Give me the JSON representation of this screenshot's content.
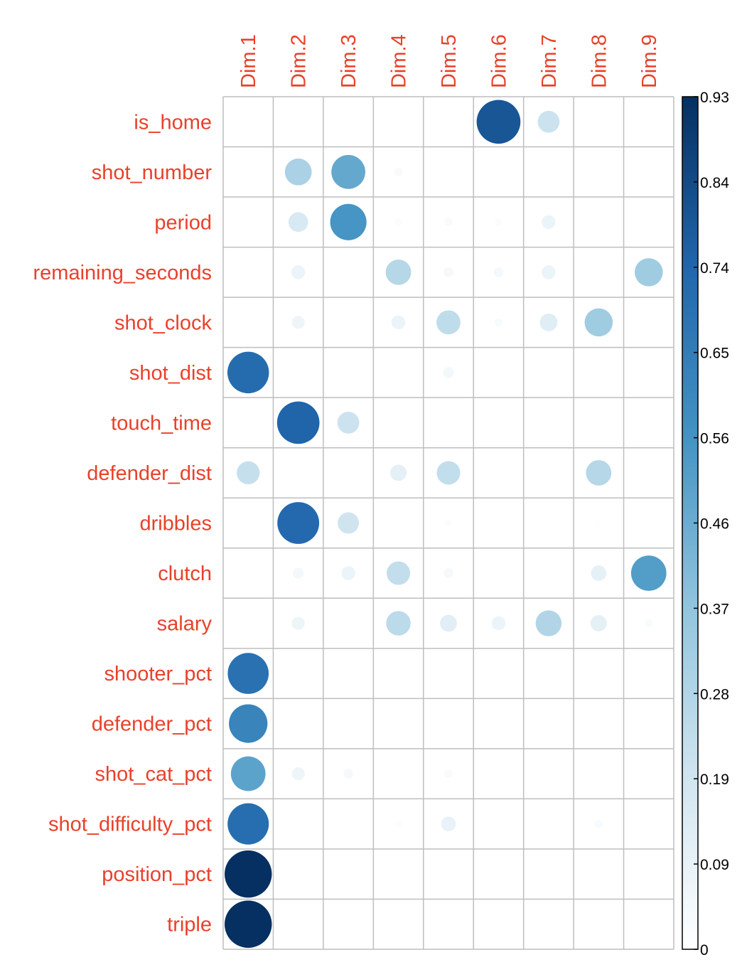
{
  "chart_data": {
    "type": "heatmap",
    "title": "",
    "columns": [
      "Dim.1",
      "Dim.2",
      "Dim.3",
      "Dim.4",
      "Dim.5",
      "Dim.6",
      "Dim.7",
      "Dim.8",
      "Dim.9"
    ],
    "rows": [
      "is_home",
      "shot_number",
      "period",
      "remaining_seconds",
      "shot_clock",
      "shot_dist",
      "touch_time",
      "defender_dist",
      "dribbles",
      "clutch",
      "salary",
      "shooter_pct",
      "defender_pct",
      "shot_cat_pct",
      "shot_difficulty_pct",
      "position_pct",
      "triple"
    ],
    "values": [
      [
        0.0,
        0.0,
        0.0,
        0.0,
        0.0,
        0.8,
        0.2,
        0.0,
        0.0
      ],
      [
        0.0,
        0.3,
        0.48,
        0.03,
        0.0,
        0.0,
        0.0,
        0.0,
        0.0
      ],
      [
        0.0,
        0.16,
        0.55,
        0.02,
        0.03,
        0.02,
        0.08,
        0.0,
        0.0
      ],
      [
        0.0,
        0.08,
        0.01,
        0.27,
        0.04,
        0.04,
        0.08,
        0.0,
        0.33
      ],
      [
        0.0,
        0.07,
        0.0,
        0.08,
        0.24,
        0.03,
        0.13,
        0.33,
        0.0
      ],
      [
        0.72,
        0.0,
        0.0,
        0.0,
        0.05,
        0.0,
        0.0,
        0.0,
        0.0
      ],
      [
        0.0,
        0.75,
        0.2,
        0.0,
        0.0,
        0.0,
        0.0,
        0.0,
        0.0
      ],
      [
        0.22,
        0.01,
        0.0,
        0.11,
        0.23,
        0.0,
        0.0,
        0.27,
        0.0
      ],
      [
        0.0,
        0.73,
        0.19,
        0.0,
        0.02,
        0.0,
        0.0,
        0.01,
        0.0
      ],
      [
        0.0,
        0.05,
        0.08,
        0.23,
        0.04,
        0.0,
        0.0,
        0.1,
        0.52
      ],
      [
        0.0,
        0.07,
        0.0,
        0.25,
        0.12,
        0.08,
        0.28,
        0.11,
        0.03
      ],
      [
        0.7,
        0.0,
        0.0,
        0.0,
        0.0,
        0.0,
        0.0,
        0.0,
        0.0
      ],
      [
        0.62,
        0.0,
        0.0,
        0.0,
        0.0,
        0.0,
        0.0,
        0.0,
        0.0
      ],
      [
        0.5,
        0.07,
        0.04,
        0.0,
        0.03,
        0.0,
        0.0,
        0.0,
        0.0
      ],
      [
        0.71,
        0.0,
        0.0,
        0.02,
        0.09,
        0.0,
        0.0,
        0.03,
        0.0
      ],
      [
        0.93,
        0.0,
        0.0,
        0.0,
        0.0,
        0.0,
        0.0,
        0.0,
        0.0
      ],
      [
        0.93,
        0.0,
        0.0,
        0.0,
        0.0,
        0.0,
        0.0,
        0.0,
        0.0
      ]
    ],
    "colorbar": {
      "ticks": [
        "0.93",
        "0.84",
        "0.74",
        "0.65",
        "0.56",
        "0.46",
        "0.37",
        "0.28",
        "0.19",
        "0.09",
        "0"
      ],
      "min": 0,
      "max": 0.93
    },
    "colors": {
      "label": "#e8412a",
      "grid": "#bebebe",
      "scale": [
        "#ffffff",
        "#d1e5f0",
        "#92c5de",
        "#4393c3",
        "#2166ac",
        "#053061"
      ]
    }
  }
}
